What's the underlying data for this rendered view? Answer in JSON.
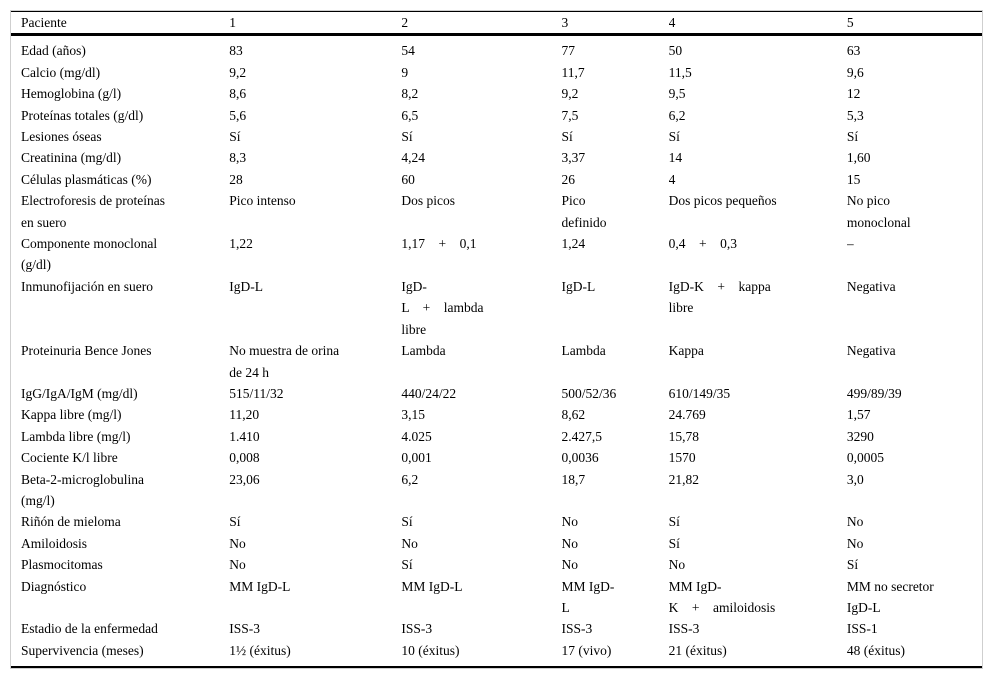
{
  "table": {
    "header": {
      "label": "Paciente",
      "cols": [
        "1",
        "2",
        "3",
        "4",
        "5"
      ]
    },
    "rows": [
      {
        "label": "Edad (años)",
        "values": [
          "83",
          "54",
          "77",
          "50",
          "63"
        ]
      },
      {
        "label": "Calcio (mg/dl)",
        "values": [
          "9,2",
          "9",
          "11,7",
          "11,5",
          "9,6"
        ]
      },
      {
        "label": "Hemoglobina (g/l)",
        "values": [
          "8,6",
          "8,2",
          "9,2",
          "9,5",
          "12"
        ]
      },
      {
        "label": "Proteínas totales (g/dl)",
        "values": [
          "5,6",
          "6,5",
          "7,5",
          "6,2",
          "5,3"
        ]
      },
      {
        "label": "Lesiones óseas",
        "values": [
          "Sí",
          "Sí",
          "Sí",
          "Sí",
          "Sí"
        ]
      },
      {
        "label": "Creatinina (mg/dl)",
        "values": [
          "8,3",
          "4,24",
          "3,37",
          "14",
          "1,60"
        ]
      },
      {
        "label": "Células plasmáticas (%)",
        "values": [
          "28",
          "60",
          "26",
          "4",
          "15"
        ]
      },
      {
        "label": "Electroforesis de proteínas\nen suero",
        "values": [
          "Pico intenso",
          "Dos picos",
          "Pico\ndefinido",
          "Dos picos pequeños",
          "No pico\nmonoclonal"
        ]
      },
      {
        "label": "Componente monoclonal\n(g/dl)",
        "values": [
          "1,22",
          "1,17    +    0,1",
          "1,24",
          "0,4    +    0,3",
          "–"
        ]
      },
      {
        "label": "Inmunofijación en suero",
        "values": [
          "IgD-L",
          "IgD-\nL    +    lambda\nlibre",
          "IgD-L",
          "IgD-K    +    kappa\nlibre",
          "Negativa"
        ]
      },
      {
        "label": "Proteinuria Bence Jones",
        "values": [
          "No muestra de orina\nde 24 h",
          "Lambda",
          "Lambda",
          "Kappa",
          "Negativa"
        ]
      },
      {
        "label": "IgG/IgA/IgM (mg/dl)",
        "values": [
          "515/11/32",
          "440/24/22",
          "500/52/36",
          "610/149/35",
          "499/89/39"
        ]
      },
      {
        "label": "Kappa libre (mg/l)",
        "values": [
          "11,20",
          "3,15",
          "8,62",
          "24.769",
          "1,57"
        ]
      },
      {
        "label": "Lambda libre (mg/l)",
        "values": [
          "1.410",
          "4.025",
          "2.427,5",
          "15,78",
          "3290"
        ]
      },
      {
        "label": "Cociente K/l libre",
        "values": [
          "0,008",
          "0,001",
          "0,0036",
          "1570",
          "0,0005"
        ]
      },
      {
        "label": "Beta-2-microglobulina\n(mg/l)",
        "values": [
          "23,06",
          "6,2",
          "18,7",
          "21,82",
          "3,0"
        ]
      },
      {
        "label": "Riñón de mieloma",
        "values": [
          "Sí",
          "Sí",
          "No",
          "Sí",
          "No"
        ]
      },
      {
        "label": "Amiloidosis",
        "values": [
          "No",
          "No",
          "No",
          "Sí",
          "No"
        ]
      },
      {
        "label": "Plasmocitomas",
        "values": [
          "No",
          "Sí",
          "No",
          "No",
          "Sí"
        ]
      },
      {
        "label": "Diagnóstico",
        "values": [
          "MM IgD-L",
          "MM IgD-L",
          "MM IgD-\nL",
          "MM IgD-\nK    +    amiloidosis",
          "MM no secretor\nIgD-L"
        ]
      },
      {
        "label": "Estadio de la enfermedad",
        "values": [
          "ISS-3",
          "ISS-3",
          "ISS-3",
          "ISS-3",
          "ISS-1"
        ]
      },
      {
        "label": "Supervivencia (meses)",
        "values": [
          "1½ (éxitus)",
          "10 (éxitus)",
          "17 (vivo)",
          "21 (éxitus)",
          "48 (éxitus)"
        ]
      }
    ]
  }
}
